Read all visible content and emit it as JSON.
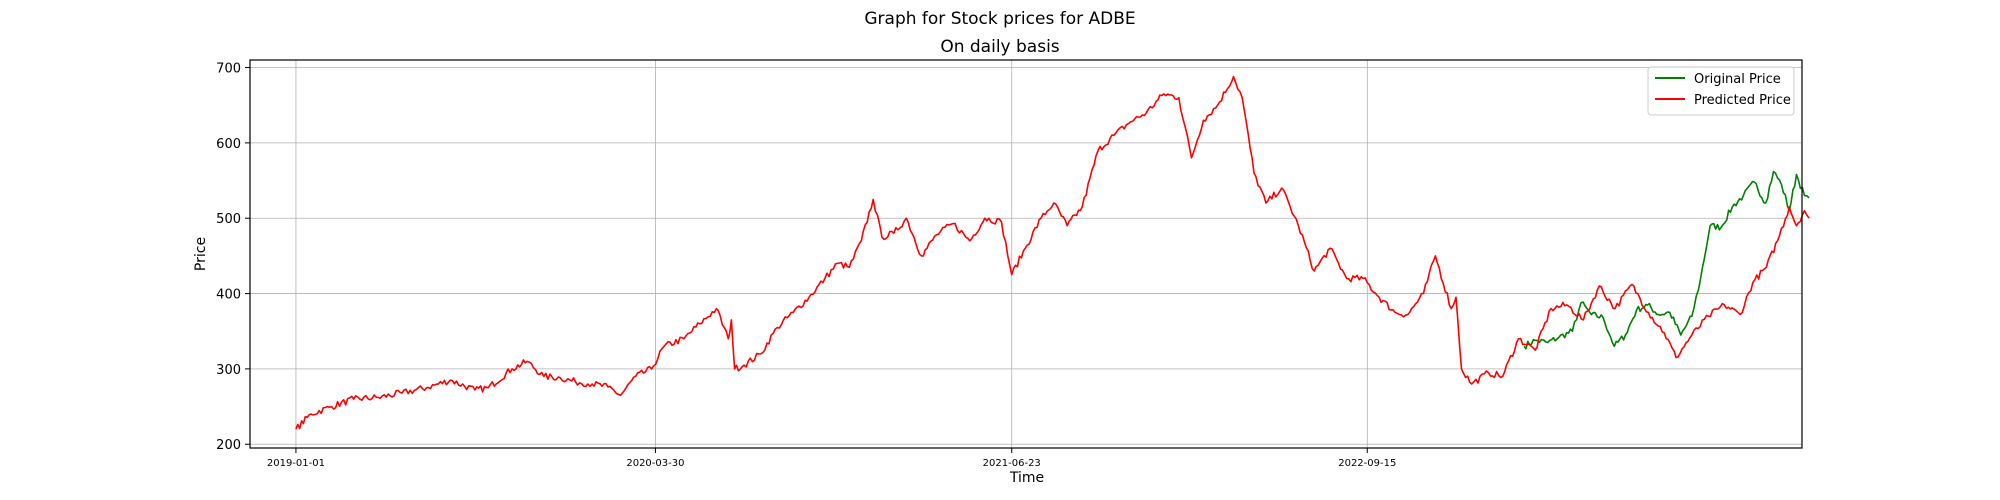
{
  "chart_data": {
    "type": "line",
    "title": "Graph for Stock prices for ADBE",
    "subtitle": "On daily basis",
    "xlabel": "Time",
    "ylabel": "Price",
    "x_axis": {
      "kind": "date",
      "range": [
        "2018-11-04",
        "2024-03-17"
      ],
      "ticks": [
        "2019-01-01",
        "2020-03-30",
        "2021-06-23",
        "2022-09-15"
      ]
    },
    "ylim": [
      195,
      710
    ],
    "yticks": [
      200,
      300,
      400,
      500,
      600,
      700
    ],
    "grid": true,
    "legend_position": "top-right",
    "series": [
      {
        "name": "Original Price",
        "color": "#008000",
        "points": [
          [
            "2023-04-01",
            330
          ],
          [
            "2023-04-15",
            338
          ],
          [
            "2023-05-01",
            335
          ],
          [
            "2023-05-15",
            342
          ],
          [
            "2023-06-01",
            350
          ],
          [
            "2023-06-12",
            388
          ],
          [
            "2023-06-25",
            372
          ],
          [
            "2023-07-10",
            368
          ],
          [
            "2023-07-24",
            330
          ],
          [
            "2023-08-07",
            345
          ],
          [
            "2023-08-21",
            378
          ],
          [
            "2023-09-04",
            385
          ],
          [
            "2023-09-18",
            372
          ],
          [
            "2023-10-02",
            375
          ],
          [
            "2023-10-16",
            345
          ],
          [
            "2023-10-30",
            370
          ],
          [
            "2023-11-10",
            420
          ],
          [
            "2023-11-22",
            490
          ],
          [
            "2023-12-06",
            488
          ],
          [
            "2023-12-20",
            515
          ],
          [
            "2024-01-03",
            530
          ],
          [
            "2024-01-17",
            548
          ],
          [
            "2024-01-31",
            520
          ],
          [
            "2024-02-10",
            562
          ],
          [
            "2024-02-20",
            545
          ],
          [
            "2024-03-01",
            510
          ],
          [
            "2024-03-10",
            558
          ],
          [
            "2024-03-20",
            530
          ],
          [
            "2024-03-26",
            527
          ]
        ]
      },
      {
        "name": "Predicted Price",
        "color": "#ff0000",
        "points": [
          [
            "2019-01-01",
            220
          ],
          [
            "2019-01-20",
            240
          ],
          [
            "2019-02-15",
            250
          ],
          [
            "2019-03-15",
            260
          ],
          [
            "2019-04-15",
            262
          ],
          [
            "2019-05-15",
            268
          ],
          [
            "2019-06-15",
            275
          ],
          [
            "2019-07-15",
            285
          ],
          [
            "2019-08-15",
            272
          ],
          [
            "2019-09-01",
            275
          ],
          [
            "2019-10-01",
            300
          ],
          [
            "2019-10-20",
            310
          ],
          [
            "2019-11-10",
            290
          ],
          [
            "2019-12-01",
            288
          ],
          [
            "2019-12-20",
            283
          ],
          [
            "2020-01-10",
            280
          ],
          [
            "2020-01-30",
            276
          ],
          [
            "2020-02-15",
            265
          ],
          [
            "2020-03-05",
            290
          ],
          [
            "2020-03-25",
            300
          ],
          [
            "2020-04-10",
            330
          ],
          [
            "2020-05-05",
            340
          ],
          [
            "2020-05-25",
            360
          ],
          [
            "2020-06-15",
            380
          ],
          [
            "2020-06-30",
            340
          ],
          [
            "2020-07-04",
            365
          ],
          [
            "2020-07-08",
            300
          ],
          [
            "2020-07-20",
            305
          ],
          [
            "2020-08-10",
            320
          ],
          [
            "2020-08-31",
            355
          ],
          [
            "2020-09-20",
            375
          ],
          [
            "2020-10-10",
            395
          ],
          [
            "2020-10-30",
            420
          ],
          [
            "2020-11-15",
            440
          ],
          [
            "2020-11-30",
            435
          ],
          [
            "2020-12-15",
            470
          ],
          [
            "2020-12-30",
            525
          ],
          [
            "2021-01-10",
            475
          ],
          [
            "2021-01-25",
            480
          ],
          [
            "2021-02-10",
            500
          ],
          [
            "2021-03-01",
            450
          ],
          [
            "2021-03-20",
            478
          ],
          [
            "2021-04-10",
            493
          ],
          [
            "2021-05-01",
            470
          ],
          [
            "2021-05-20",
            500
          ],
          [
            "2021-06-10",
            495
          ],
          [
            "2021-06-23",
            425
          ],
          [
            "2021-07-10",
            460
          ],
          [
            "2021-07-30",
            500
          ],
          [
            "2021-08-15",
            520
          ],
          [
            "2021-09-01",
            490
          ],
          [
            "2021-09-20",
            515
          ],
          [
            "2021-10-10",
            590
          ],
          [
            "2021-10-30",
            610
          ],
          [
            "2021-11-20",
            628
          ],
          [
            "2021-12-10",
            640
          ],
          [
            "2022-01-01",
            665
          ],
          [
            "2022-01-20",
            660
          ],
          [
            "2022-02-05",
            580
          ],
          [
            "2022-02-20",
            630
          ],
          [
            "2022-03-10",
            650
          ],
          [
            "2022-03-30",
            688
          ],
          [
            "2022-04-10",
            660
          ],
          [
            "2022-04-25",
            560
          ],
          [
            "2022-05-10",
            520
          ],
          [
            "2022-05-30",
            540
          ],
          [
            "2022-06-20",
            490
          ],
          [
            "2022-07-10",
            430
          ],
          [
            "2022-07-30",
            460
          ],
          [
            "2022-08-20",
            420
          ],
          [
            "2022-09-10",
            420
          ],
          [
            "2022-09-30",
            395
          ],
          [
            "2022-10-20",
            375
          ],
          [
            "2022-11-05",
            372
          ],
          [
            "2022-11-25",
            400
          ],
          [
            "2022-12-10",
            450
          ],
          [
            "2022-12-30",
            380
          ],
          [
            "2023-01-05",
            395
          ],
          [
            "2023-01-12",
            300
          ],
          [
            "2023-01-25",
            280
          ],
          [
            "2023-02-15",
            295
          ],
          [
            "2023-03-05",
            290
          ],
          [
            "2023-03-25",
            340
          ],
          [
            "2023-04-15",
            325
          ],
          [
            "2023-05-05",
            380
          ],
          [
            "2023-05-25",
            385
          ],
          [
            "2023-06-15",
            365
          ],
          [
            "2023-07-05",
            410
          ],
          [
            "2023-07-25",
            380
          ],
          [
            "2023-08-15",
            412
          ],
          [
            "2023-09-05",
            375
          ],
          [
            "2023-09-25",
            348
          ],
          [
            "2023-10-10",
            315
          ],
          [
            "2023-10-30",
            345
          ],
          [
            "2023-11-20",
            370
          ],
          [
            "2023-12-10",
            385
          ],
          [
            "2023-12-30",
            372
          ],
          [
            "2024-01-15",
            415
          ],
          [
            "2024-02-01",
            435
          ],
          [
            "2024-02-15",
            470
          ],
          [
            "2024-03-01",
            515
          ],
          [
            "2024-03-10",
            490
          ],
          [
            "2024-03-20",
            510
          ],
          [
            "2024-03-26",
            500
          ]
        ]
      }
    ]
  }
}
